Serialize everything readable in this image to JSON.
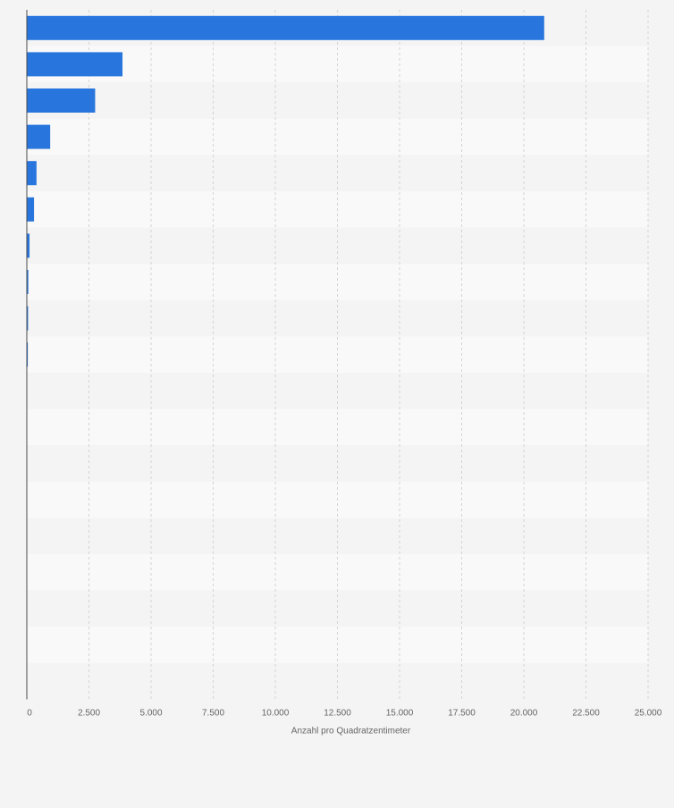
{
  "chart_data": {
    "type": "bar",
    "orientation": "horizontal",
    "categories": [
      "",
      "",
      "",
      "",
      "",
      "",
      "",
      "",
      "",
      "",
      "",
      "",
      "",
      "",
      "",
      "",
      "",
      "",
      ""
    ],
    "values": [
      20820,
      3850,
      2750,
      940,
      390,
      290,
      110,
      60,
      50,
      40,
      0,
      0,
      0,
      0,
      0,
      0,
      0,
      0,
      0
    ],
    "xlabel": "Anzahl pro Quadratzentimeter",
    "ylabel": "",
    "xlim": [
      0,
      25000
    ],
    "xticks": [
      0,
      2500,
      5000,
      7500,
      10000,
      12500,
      15000,
      17500,
      20000,
      22500,
      25000
    ],
    "xtick_labels": [
      "0",
      "2.500",
      "5.000",
      "7.500",
      "10.000",
      "12.500",
      "15.000",
      "17.500",
      "20.000",
      "22.500",
      "25.000"
    ],
    "grid": true,
    "bar_color": "#2876dd"
  }
}
